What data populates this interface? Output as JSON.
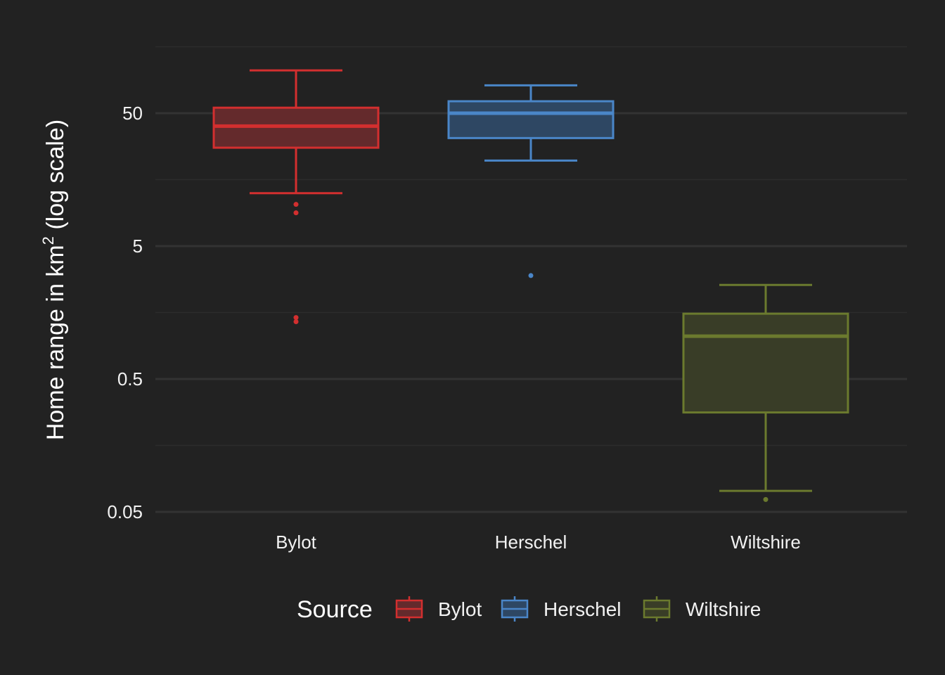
{
  "chart_data": {
    "type": "boxplot",
    "title": "",
    "xlabel": "",
    "ylabel": {
      "main": "Home range in km",
      "superscript": "2",
      "suffix": " (log scale)"
    },
    "y_scale": "log10",
    "ylim": [
      0.05,
      130
    ],
    "y_ticks": [
      {
        "value": 0.05,
        "label": "0.05"
      },
      {
        "value": 0.5,
        "label": "0.5"
      },
      {
        "value": 5,
        "label": "5"
      },
      {
        "value": 50,
        "label": "50"
      }
    ],
    "y_minor_gridlines": [
      0.158,
      1.58,
      15.8,
      158
    ],
    "grid": true,
    "categories": [
      "Bylot",
      "Herschel",
      "Wiltshire"
    ],
    "boxes": [
      {
        "name": "Bylot",
        "color": "#d32f2f",
        "fill": "#642a2c",
        "whisker_low": 12.5,
        "q1": 27.5,
        "median": 40,
        "q3": 55,
        "whisker_high": 105,
        "outliers": [
          8.9,
          10.3,
          1.35,
          1.45
        ]
      },
      {
        "name": "Herschel",
        "color": "#4a86c8",
        "fill": "#2e4763",
        "whisker_low": 22,
        "q1": 32.5,
        "median": 50,
        "q3": 61.5,
        "whisker_high": 81,
        "outliers": [
          3.0
        ]
      },
      {
        "name": "Wiltshire",
        "color": "#6b7a2e",
        "fill": "#393d27",
        "whisker_low": 0.072,
        "q1": 0.28,
        "median": 1.05,
        "q3": 1.55,
        "whisker_high": 2.55,
        "outliers": [
          0.062
        ]
      }
    ],
    "legend": {
      "title": "Source",
      "position": "bottom",
      "entries": [
        "Bylot",
        "Herschel",
        "Wiltshire"
      ]
    },
    "colors": {
      "background": "#222222",
      "grid_major": "#333333",
      "grid_minor": "#2c2c2c",
      "text": "#f2f2f2"
    }
  }
}
